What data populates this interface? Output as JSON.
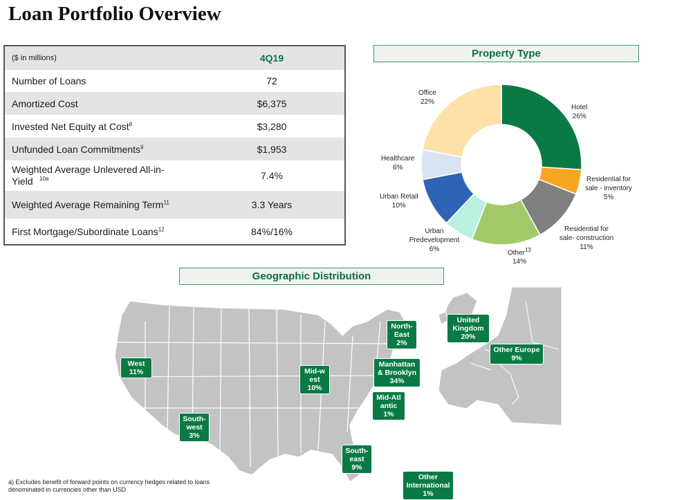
{
  "title": "Loan Portfolio Overview",
  "table": {
    "header_label": "($ in millions)",
    "period": "4Q19",
    "rows": [
      {
        "label": "Number of Loans",
        "sup": "",
        "value": "72"
      },
      {
        "label": "Amortized Cost",
        "sup": "",
        "value": "$6,375"
      },
      {
        "label": "Invested Net Equity at Cost",
        "sup": "8",
        "value": "$3,280"
      },
      {
        "label": "Unfunded Loan Commitments",
        "sup": "9",
        "value": "$1,953"
      },
      {
        "label": "Weighted Average Unlevered All-in-Yield",
        "sup": "10a",
        "value": "7.4%"
      },
      {
        "label": "Weighted Average Remaining Term",
        "sup": "11",
        "value": "3.3 Years"
      },
      {
        "label": "First Mortgage/Subordinate Loans",
        "sup": "12",
        "value": "84%/16%"
      }
    ]
  },
  "property_type": {
    "header": "Property Type",
    "slices": [
      {
        "name": "Hotel",
        "pct": "26%",
        "value": 26,
        "color": "#0a7a45"
      },
      {
        "name": "Residential for sale - inventory",
        "pct": "5%",
        "value": 5,
        "color": "#f6a623"
      },
      {
        "name": "Residential for sale- construction",
        "pct": "11%",
        "value": 11,
        "color": "#808080"
      },
      {
        "name": "Other",
        "sup": "13",
        "pct": "14%",
        "value": 14,
        "color": "#a3c96a"
      },
      {
        "name": "Urban Predevelopment",
        "pct": "6%",
        "value": 6,
        "color": "#b9f0e0"
      },
      {
        "name": "Urban Retail",
        "pct": "10%",
        "value": 10,
        "color": "#2f63b5"
      },
      {
        "name": "Healthcare",
        "pct": "6%",
        "value": 6,
        "color": "#d8e4f4"
      },
      {
        "name": "Office",
        "pct": "22%",
        "value": 22,
        "color": "#fde1a8"
      }
    ]
  },
  "geo": {
    "header": "Geographic Distribution",
    "regions": {
      "west": {
        "name": "West",
        "pct": "11%"
      },
      "southwest": {
        "name": "South-west",
        "pct": "3%"
      },
      "midwest": {
        "name": "Mid-west",
        "pct": "10%"
      },
      "northeast": {
        "name": "North-East",
        "pct": "2%"
      },
      "manhattan": {
        "name": "Manhattan & Brooklyn",
        "pct": "34%"
      },
      "midatlantic": {
        "name": "Mid-Atlantic",
        "pct": "1%"
      },
      "southeast": {
        "name": "South-east",
        "pct": "9%"
      },
      "uk": {
        "name": "United Kingdom",
        "pct": "20%"
      },
      "europe": {
        "name": "Other Europe",
        "pct": "9%"
      },
      "intl": {
        "name": "Other International",
        "pct": "1%"
      }
    }
  },
  "footnote": "a) Excludes benefit of forward points on currency hedges related to loans denominated in currencies other than USD"
}
